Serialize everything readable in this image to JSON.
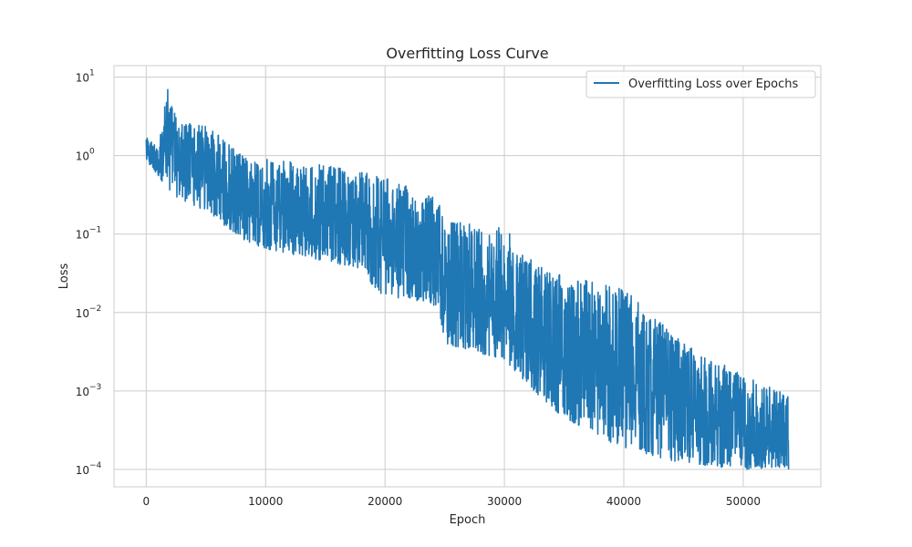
{
  "chart_data": {
    "type": "line",
    "title": "Overfitting Loss Curve",
    "xlabel": "Epoch",
    "ylabel": "Loss",
    "xlim": [
      -2700,
      56500
    ],
    "ylim": [
      6e-05,
      14
    ],
    "yscale": "log",
    "grid": true,
    "legend_position": "top-right",
    "x_ticks": [
      {
        "value": 0,
        "label": "0"
      },
      {
        "value": 10000,
        "label": "10000"
      },
      {
        "value": 20000,
        "label": "20000"
      },
      {
        "value": 30000,
        "label": "30000"
      },
      {
        "value": 40000,
        "label": "40000"
      },
      {
        "value": 50000,
        "label": "50000"
      }
    ],
    "y_ticks": [
      {
        "value": 10,
        "base": "10",
        "exp": "1"
      },
      {
        "value": 1,
        "base": "10",
        "exp": "0"
      },
      {
        "value": 0.1,
        "base": "10",
        "exp": "−1"
      },
      {
        "value": 0.01,
        "base": "10",
        "exp": "−2"
      },
      {
        "value": 0.001,
        "base": "10",
        "exp": "−3"
      },
      {
        "value": 0.0001,
        "base": "10",
        "exp": "−4"
      }
    ],
    "series": [
      {
        "name": "Overfitting Loss over Epochs",
        "color": "#1f77b4",
        "x_range": [
          0,
          53800
        ],
        "y_start": 1.6,
        "y_end": 0.0001,
        "envelope": [
          {
            "epoch": 0,
            "low": 0.8,
            "high": 1.7
          },
          {
            "epoch": 1000,
            "low": 0.55,
            "high": 1.4
          },
          {
            "epoch": 1800,
            "low": 0.38,
            "high": 7.0
          },
          {
            "epoch": 2500,
            "low": 0.3,
            "high": 3.0
          },
          {
            "epoch": 5400,
            "low": 0.18,
            "high": 2.3
          },
          {
            "epoch": 8000,
            "low": 0.085,
            "high": 1.0
          },
          {
            "epoch": 10000,
            "low": 0.065,
            "high": 0.9
          },
          {
            "epoch": 15000,
            "low": 0.045,
            "high": 0.75
          },
          {
            "epoch": 18500,
            "low": 0.035,
            "high": 0.6
          },
          {
            "epoch": 19000,
            "low": 0.018,
            "high": 0.6
          },
          {
            "epoch": 24500,
            "low": 0.012,
            "high": 0.28
          },
          {
            "epoch": 25000,
            "low": 0.004,
            "high": 0.15
          },
          {
            "epoch": 30000,
            "low": 0.0025,
            "high": 0.12
          },
          {
            "epoch": 32800,
            "low": 0.0009,
            "high": 0.04
          },
          {
            "epoch": 35000,
            "low": 0.00045,
            "high": 0.03
          },
          {
            "epoch": 40000,
            "low": 0.00018,
            "high": 0.02
          },
          {
            "epoch": 45000,
            "low": 0.00012,
            "high": 0.004
          },
          {
            "epoch": 50000,
            "low": 0.0001,
            "high": 0.0016
          },
          {
            "epoch": 53800,
            "low": 0.0001,
            "high": 0.0009
          }
        ]
      }
    ]
  }
}
